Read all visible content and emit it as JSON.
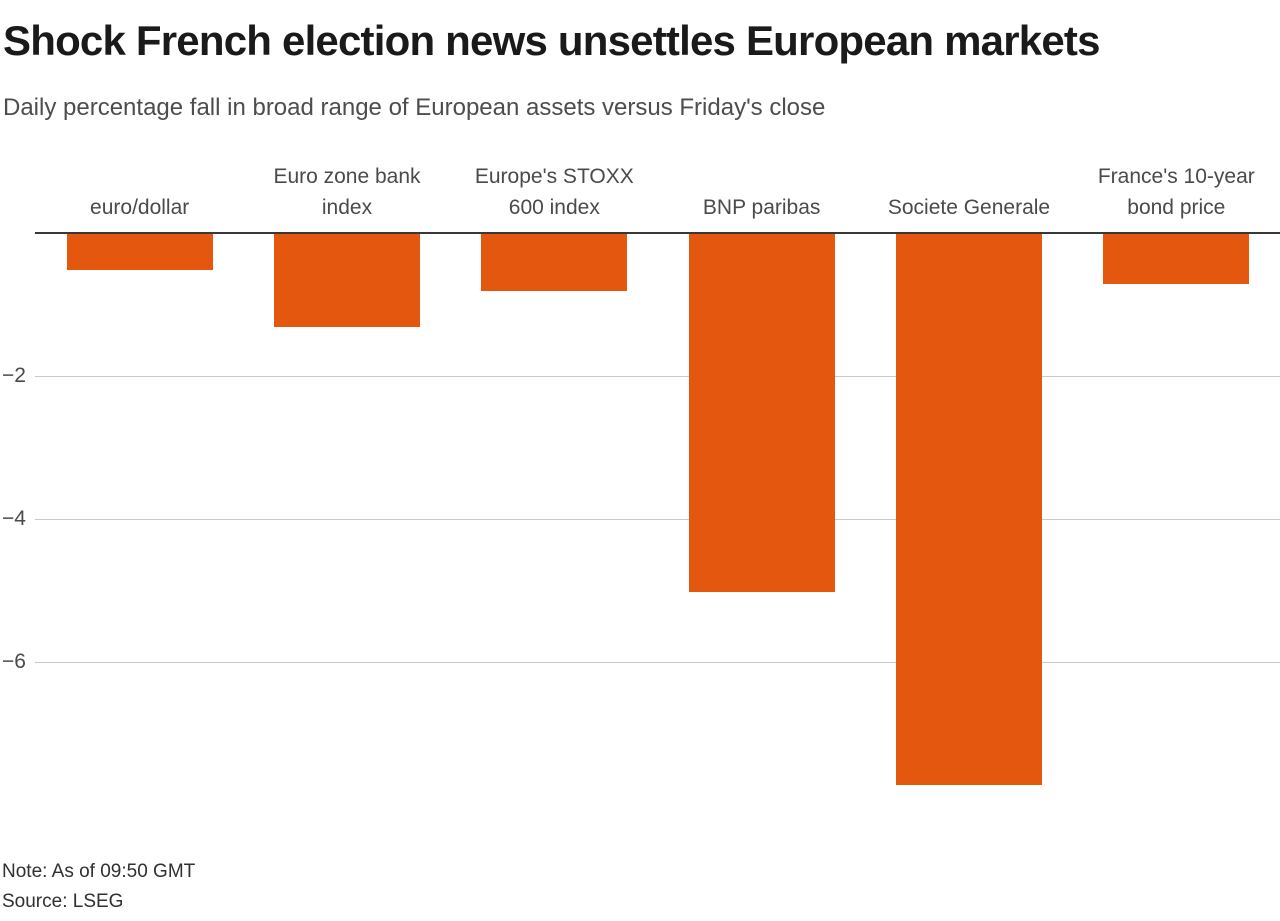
{
  "chart_data": {
    "type": "bar",
    "title": "Shock French election news unsettles European markets",
    "subtitle": "Daily percentage fall in broad range of European assets versus Friday's close",
    "categories": [
      "euro/dollar",
      "Euro zone bank\nindex",
      "Europe's STOXX\n600 index",
      "BNP paribas",
      "Societe Generale",
      "France's 10-year\nbond price"
    ],
    "values": [
      -0.5,
      -1.3,
      -0.8,
      -5.0,
      -7.7,
      -0.7
    ],
    "unit": "percent",
    "yticks": [
      {
        "value": -2,
        "label": "−2"
      },
      {
        "value": -4,
        "label": "−4"
      },
      {
        "value": -6,
        "label": "−6"
      }
    ],
    "ylim": [
      -8,
      0
    ],
    "grid": "horizontal",
    "legend": "none",
    "colors": {
      "bar": "#E4570E",
      "gridline": "#C9C9C9",
      "zero_axis": "#383838",
      "title": "#1A1A1A",
      "subtitle": "#4D4D4D",
      "labels": "#4A4A4A"
    },
    "note": "Note: As of 09:50 GMT",
    "source": "Source: LSEG"
  }
}
